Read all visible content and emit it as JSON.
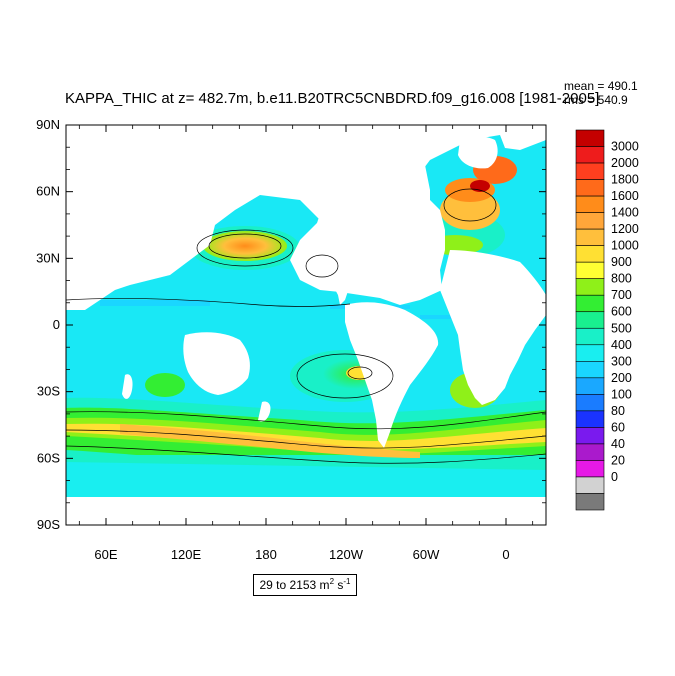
{
  "chart_data": {
    "type": "heatmap",
    "title": "KAPPA_THIC at z= 482.7m, b.e11.B20TRC5CNBDRD.f09_g16.008 [1981-2005]",
    "stats": {
      "mean": "mean = 490.1",
      "rms": "rms = 540.9"
    },
    "x_ticks": [
      "60E",
      "120E",
      "180",
      "120W",
      "60W",
      "0"
    ],
    "y_ticks": [
      "90N",
      "60N",
      "30N",
      "0",
      "30S",
      "60S",
      "90S"
    ],
    "x_range_deg": [
      30,
      390
    ],
    "y_range_deg": [
      -90,
      90
    ],
    "range_label": {
      "prefix": "29 to 2153 m",
      "sup1": "2",
      "mid": " s",
      "sup2": "-1"
    },
    "colorbar": {
      "labels": [
        "3000",
        "2000",
        "1800",
        "1600",
        "1400",
        "1200",
        "1000",
        "900",
        "800",
        "700",
        "600",
        "500",
        "400",
        "300",
        "200",
        "100",
        "80",
        "60",
        "40",
        "20",
        "0"
      ],
      "colors": [
        "#c40000",
        "#ee1c1c",
        "#ff3f1f",
        "#ff6a1a",
        "#ff8c1a",
        "#ffa63a",
        "#ffbf3c",
        "#ffe033",
        "#ffff33",
        "#8ff019",
        "#33ee33",
        "#19f08f",
        "#19f0c8",
        "#19eef0",
        "#1ad6ff",
        "#1aa8ff",
        "#1a7cff",
        "#1a33ff",
        "#7a1aee",
        "#aa1acc",
        "#e619e6",
        "#d2d2d2",
        "#7a7a7a"
      ]
    },
    "background_color": "#19e8f5"
  }
}
